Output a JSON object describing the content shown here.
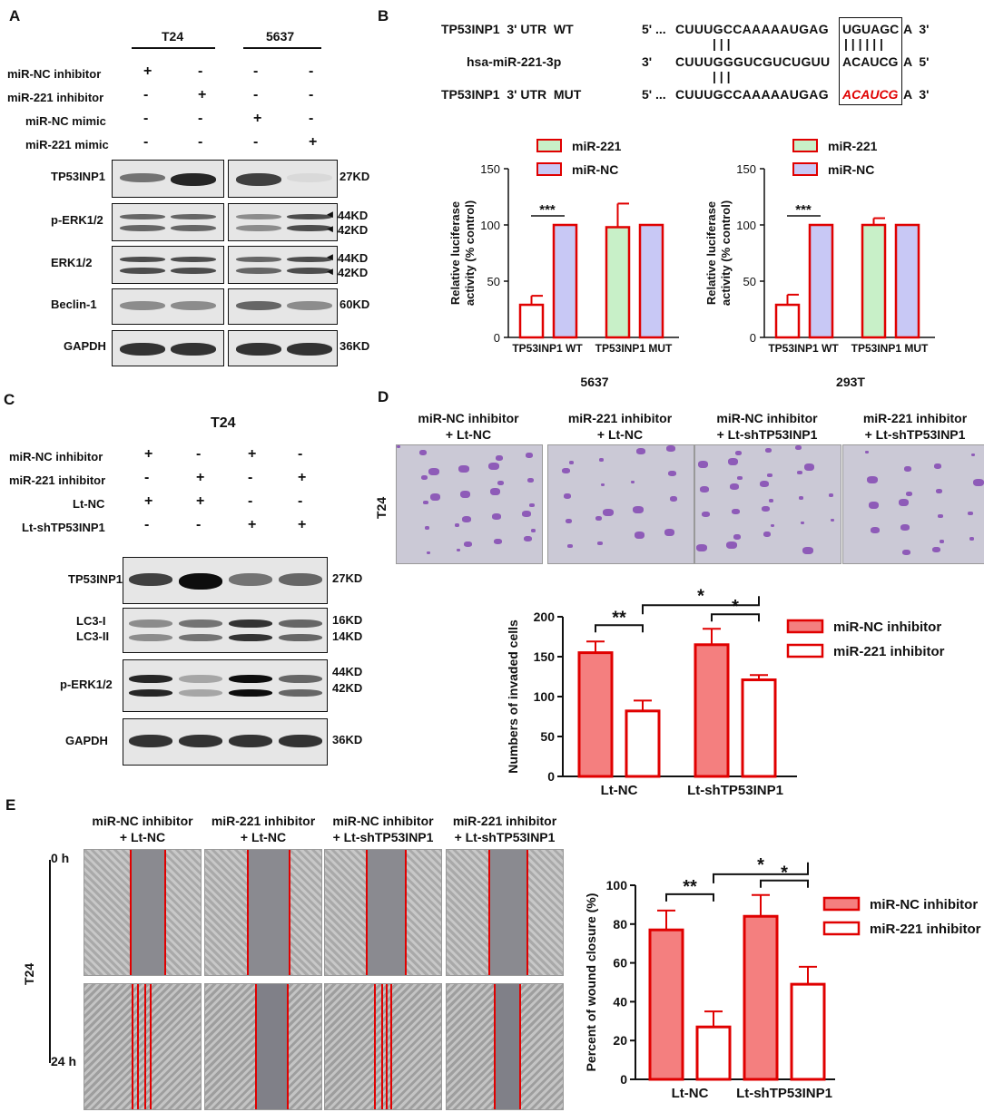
{
  "panelA": {
    "letter": "A",
    "cell_lines": [
      "T24",
      "5637"
    ],
    "conditions": [
      {
        "label": "miR-NC inhibitor",
        "signs": [
          "+",
          "-",
          "-",
          "-"
        ]
      },
      {
        "label": "miR-221 inhibitor",
        "signs": [
          "-",
          "+",
          "-",
          "-"
        ]
      },
      {
        "label": "miR-NC mimic",
        "signs": [
          "-",
          "-",
          "+",
          "-"
        ]
      },
      {
        "label": "miR-221 mimic",
        "signs": [
          "-",
          "-",
          "-",
          "+"
        ]
      }
    ],
    "blots": [
      {
        "label": "TP53INP1",
        "sizes": [
          "27KD"
        ]
      },
      {
        "label": "p-ERK1/2",
        "sizes": [
          "44KD",
          "42KD"
        ]
      },
      {
        "label": "ERK1/2",
        "sizes": [
          "44KD",
          "42KD"
        ]
      },
      {
        "label": "Beclin-1",
        "sizes": [
          "60KD"
        ]
      },
      {
        "label": "GAPDH",
        "sizes": [
          "36KD"
        ]
      }
    ]
  },
  "panelB": {
    "letter": "B",
    "sequences": [
      {
        "name": "TP53INP1  3' UTR  WT",
        "five": "5' ...",
        "body": "CUUUGCCAAAAAUGAG",
        "site": "UGUAGC",
        "tail": "A  3'",
        "site_color": "#111111"
      },
      {
        "name": "hsa-miR-221-3p",
        "five": "3'",
        "body": "CUUUGGGUCGUCUGUU",
        "site": "ACAUCG",
        "tail": "A  5'",
        "site_color": "#111111"
      },
      {
        "name": "TP53INP1  3' UTR  MUT",
        "five": "5' ...",
        "body": "CUUUGCCAAAAAUGAG",
        "site": "ACAUCG",
        "tail": "A  3'",
        "site_color": "#e00000"
      }
    ],
    "pairing": "| | |",
    "site_pairing": "| | | | | |"
  },
  "chart_data": [
    {
      "type": "bar",
      "panel": "B-5637",
      "title": "5637",
      "ylabel": "Relative luciferase activity (% control)",
      "categories": [
        "TP53INP1 WT",
        "TP53INP1 MUT"
      ],
      "series": [
        {
          "name": "miR-221",
          "values": [
            29,
            98
          ],
          "errors": [
            8,
            21
          ],
          "color": "#c8f0c8"
        },
        {
          "name": "miR-NC",
          "values": [
            100,
            100
          ],
          "errors": [
            0,
            0
          ],
          "color": "#c8c8f5"
        }
      ],
      "first_bar_color": "#ffffff",
      "ylim": [
        0,
        150
      ],
      "yticks": [
        0,
        50,
        100,
        150
      ],
      "significance": [
        "***"
      ]
    },
    {
      "type": "bar",
      "panel": "B-293T",
      "title": "293T",
      "ylabel": "Relative luciferase activity (% control)",
      "categories": [
        "TP53INP1 WT",
        "TP53INP1 MUT"
      ],
      "series": [
        {
          "name": "miR-221",
          "values": [
            29,
            100
          ],
          "errors": [
            9,
            6
          ],
          "color": "#c8f0c8"
        },
        {
          "name": "miR-NC",
          "values": [
            100,
            100
          ],
          "errors": [
            0,
            0
          ],
          "color": "#c8c8f5"
        }
      ],
      "first_bar_color": "#ffffff",
      "ylim": [
        0,
        150
      ],
      "yticks": [
        0,
        50,
        100,
        150
      ],
      "significance": [
        "***"
      ]
    },
    {
      "type": "bar",
      "panel": "D",
      "ylabel": "Numbers of invaded cells",
      "categories": [
        "Lt-NC",
        "Lt-shTP53INP1"
      ],
      "series": [
        {
          "name": "miR-NC inhibitor",
          "values": [
            155,
            165
          ],
          "errors": [
            14,
            20
          ],
          "color": "#f47f7f"
        },
        {
          "name": "miR-221 inhibitor",
          "values": [
            82,
            121
          ],
          "errors": [
            13,
            6
          ],
          "color": "#ffffff"
        }
      ],
      "ylim": [
        0,
        200
      ],
      "yticks": [
        0,
        50,
        100,
        150,
        200
      ],
      "significance": [
        "**",
        "*",
        "*"
      ]
    },
    {
      "type": "bar",
      "panel": "E",
      "ylabel": "Percent of wound closure (%)",
      "categories": [
        "Lt-NC",
        "Lt-shTP53INP1"
      ],
      "series": [
        {
          "name": "miR-NC inhibitor",
          "values": [
            77,
            84
          ],
          "errors": [
            10,
            11
          ],
          "color": "#f47f7f"
        },
        {
          "name": "miR-221 inhibitor",
          "values": [
            27,
            49
          ],
          "errors": [
            8,
            9
          ],
          "color": "#ffffff"
        }
      ],
      "ylim": [
        0,
        100
      ],
      "yticks": [
        0,
        20,
        40,
        60,
        80,
        100
      ],
      "significance": [
        "**",
        "*",
        "*"
      ]
    }
  ],
  "panelC": {
    "letter": "C",
    "cell_line": "T24",
    "conditions": [
      {
        "label": "miR-NC inhibitor",
        "signs": [
          "+",
          "-",
          "+",
          "-"
        ]
      },
      {
        "label": "miR-221 inhibitor",
        "signs": [
          "-",
          "+",
          "-",
          "+"
        ]
      },
      {
        "label": "Lt-NC",
        "signs": [
          "+",
          "+",
          "-",
          "-"
        ]
      },
      {
        "label": "Lt-shTP53INP1",
        "signs": [
          "-",
          "-",
          "+",
          "+"
        ]
      }
    ],
    "blots": [
      {
        "label": "TP53INP1",
        "sizes": [
          "27KD"
        ]
      },
      {
        "label": "LC3-I\nLC3-II",
        "sizes": [
          "16KD",
          "14KD"
        ]
      },
      {
        "label": "p-ERK1/2",
        "sizes": [
          "44KD",
          "42KD"
        ]
      },
      {
        "label": "GAPDH",
        "sizes": [
          "36KD"
        ]
      }
    ]
  },
  "panelD": {
    "letter": "D",
    "row_label": "T24",
    "images": [
      "miR-NC inhibitor\n+ Lt-NC",
      "miR-221 inhibitor\n+ Lt-NC",
      "miR-NC inhibitor\n+ Lt-shTP53INP1",
      "miR-221 inhibitor\n+ Lt-shTP53INP1"
    ]
  },
  "panelE": {
    "letter": "E",
    "row_label": "T24",
    "times": [
      "0 h",
      "24 h"
    ],
    "images": [
      "miR-NC inhibitor\n+ Lt-NC",
      "miR-221 inhibitor\n+ Lt-NC",
      "miR-NC inhibitor\n+ Lt-shTP53INP1",
      "miR-221 inhibitor\n+ Lt-shTP53INP1"
    ]
  }
}
